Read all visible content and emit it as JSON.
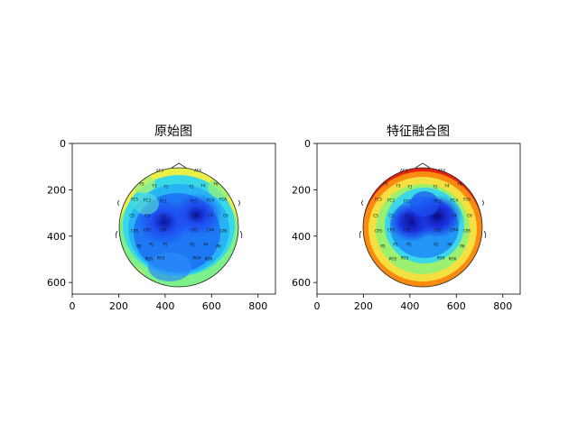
{
  "chart_data": [
    {
      "type": "heatmap",
      "title": "原始图",
      "xlim": [
        0,
        875
      ],
      "ylim": [
        650,
        0
      ],
      "xticks": [
        "0",
        "200",
        "400",
        "600",
        "800"
      ],
      "yticks": [
        "0",
        "200",
        "400",
        "600"
      ],
      "grid": false,
      "colormap": "jet",
      "electrodes": [
        "AF3",
        "AF4",
        "F5",
        "F3",
        "F1",
        "F2",
        "F4",
        "F6",
        "FC5",
        "FC3",
        "FC1",
        "FC2",
        "FC4",
        "FC6",
        "C5",
        "C3",
        "C1",
        "C2",
        "C4",
        "C6",
        "CP5",
        "CP3",
        "CP1",
        "CP2",
        "CP4",
        "CP6",
        "P5",
        "P3",
        "P1",
        "P2",
        "P4",
        "P6",
        "PO5",
        "PO3",
        "PO4",
        "PO6"
      ]
    },
    {
      "type": "heatmap",
      "title": "特征融合图",
      "xlim": [
        0,
        875
      ],
      "ylim": [
        650,
        0
      ],
      "xticks": [
        "0",
        "200",
        "400",
        "600",
        "800"
      ],
      "yticks": [
        "0",
        "200",
        "400",
        "600"
      ],
      "grid": false,
      "colormap": "jet",
      "electrodes": [
        "AF3",
        "AF4",
        "F5",
        "F3",
        "F1",
        "F2",
        "F4",
        "F6",
        "FC5",
        "FC3",
        "FC1",
        "FC2",
        "FC4",
        "FC6",
        "C5",
        "C3",
        "C1",
        "C2",
        "C4",
        "C6",
        "CP5",
        "CP3",
        "CP1",
        "CP2",
        "CP4",
        "CP6",
        "P5",
        "P3",
        "P1",
        "P2",
        "P4",
        "P6",
        "PO5",
        "PO3",
        "PO4",
        "PO6"
      ]
    }
  ]
}
